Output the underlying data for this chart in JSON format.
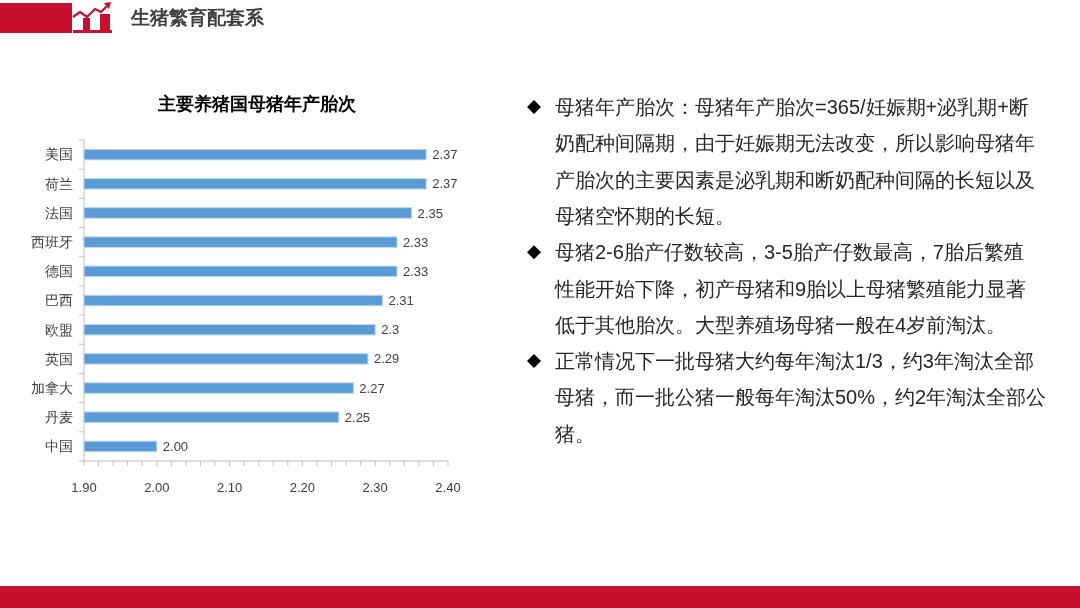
{
  "chart_data": [
    {
      "type": "bar",
      "title": "主要养猪国母猪年产胎次",
      "orientation": "horizontal",
      "categories": [
        "美国",
        "荷兰",
        "法国",
        "西班牙",
        "德国",
        "巴西",
        "欧盟",
        "英国",
        "加拿大",
        "丹麦",
        "中国"
      ],
      "values": [
        2.37,
        2.37,
        2.35,
        2.33,
        2.33,
        2.31,
        2.3,
        2.29,
        2.27,
        2.25,
        2.0
      ],
      "value_labels": [
        "2.37",
        "2.37",
        "2.35",
        "2.33",
        "2.33",
        "2.31",
        "2.3",
        "2.29",
        "2.27",
        "2.25",
        "2.00"
      ],
      "color": "#5b9bd5",
      "xlim": [
        1.9,
        2.4
      ],
      "xticks": [
        {
          "value": 1.9,
          "label": "1.90"
        },
        {
          "value": 1.92,
          "label": null
        },
        {
          "value": 1.94,
          "label": null
        },
        {
          "value": 1.96,
          "label": null
        },
        {
          "value": 1.98,
          "label": null
        },
        {
          "value": 2.0,
          "label": "2.00"
        },
        {
          "value": 2.02,
          "label": null
        },
        {
          "value": 2.04,
          "label": null
        },
        {
          "value": 2.06,
          "label": null
        },
        {
          "value": 2.08,
          "label": null
        },
        {
          "value": 2.1,
          "label": "2.10"
        },
        {
          "value": 2.12,
          "label": null
        },
        {
          "value": 2.14,
          "label": null
        },
        {
          "value": 2.16,
          "label": null
        },
        {
          "value": 2.18,
          "label": null
        },
        {
          "value": 2.2,
          "label": "2.20"
        },
        {
          "value": 2.22,
          "label": null
        },
        {
          "value": 2.24,
          "label": null
        },
        {
          "value": 2.26,
          "label": null
        },
        {
          "value": 2.28,
          "label": null
        },
        {
          "value": 2.3,
          "label": "2.30"
        },
        {
          "value": 2.32,
          "label": null
        },
        {
          "value": 2.34,
          "label": null
        },
        {
          "value": 2.36,
          "label": null
        },
        {
          "value": 2.38,
          "label": null
        },
        {
          "value": 2.4,
          "label": "2.40"
        }
      ]
    },
    {
      "type": "other",
      "title": "生猪繁育配套系",
      "annotations": [
        "母猪年产胎次：母猪年产胎次=365/妊娠期+泌乳期+断奶配种间隔期，由于妊娠期无法改变，所以影响母猪年产胎次的主要因素是泌乳期和断奶配种间隔的长短以及母猪空怀期的长短。",
        "母猪2-6胎产仔数较高，3-5胎产仔数最高，7胎后繁殖性能开始下降，初产母猪和9胎以上母猪繁殖能力显著低于其他胎次。大型养殖场母猪一般在4岁前淘汰。",
        "正常情况下一批母猪大约每年淘汰1/3，约3年淘汰全部母猪，而一批公猪一般每年淘汰50%，约2年淘汰全部公猪。"
      ]
    }
  ]
}
